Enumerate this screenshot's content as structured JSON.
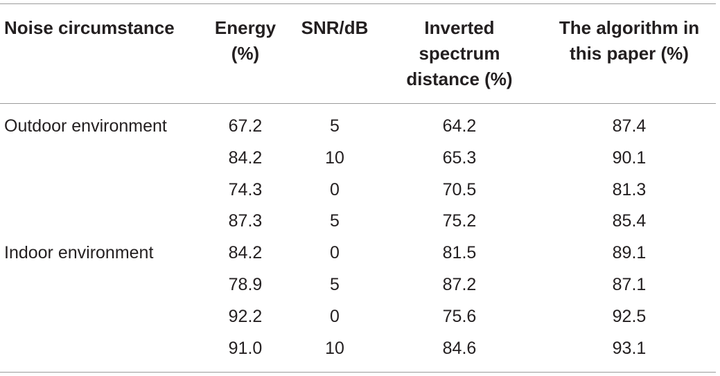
{
  "table": {
    "headers": {
      "noise": "Noise circumstance",
      "energy": "Energy\n(%)",
      "snr": "SNR/dB",
      "inverted": "Inverted\nspectrum\ndistance (%)",
      "algorithm": "The algorithm in\nthis paper (%)"
    },
    "rows": [
      {
        "noise": "Outdoor environment",
        "energy": "67.2",
        "snr": "5",
        "inverted": "64.2",
        "algorithm": "87.4"
      },
      {
        "noise": "",
        "energy": "84.2",
        "snr": "10",
        "inverted": "65.3",
        "algorithm": "90.1"
      },
      {
        "noise": "",
        "energy": "74.3",
        "snr": "0",
        "inverted": "70.5",
        "algorithm": "81.3"
      },
      {
        "noise": "",
        "energy": "87.3",
        "snr": "5",
        "inverted": "75.2",
        "algorithm": "85.4"
      },
      {
        "noise": "Indoor environment",
        "energy": "84.2",
        "snr": "0",
        "inverted": "81.5",
        "algorithm": "89.1"
      },
      {
        "noise": "",
        "energy": "78.9",
        "snr": "5",
        "inverted": "87.2",
        "algorithm": "87.1"
      },
      {
        "noise": "",
        "energy": "92.2",
        "snr": "0",
        "inverted": "75.6",
        "algorithm": "92.5"
      },
      {
        "noise": "",
        "energy": "91.0",
        "snr": "10",
        "inverted": "84.6",
        "algorithm": "93.1"
      }
    ]
  }
}
